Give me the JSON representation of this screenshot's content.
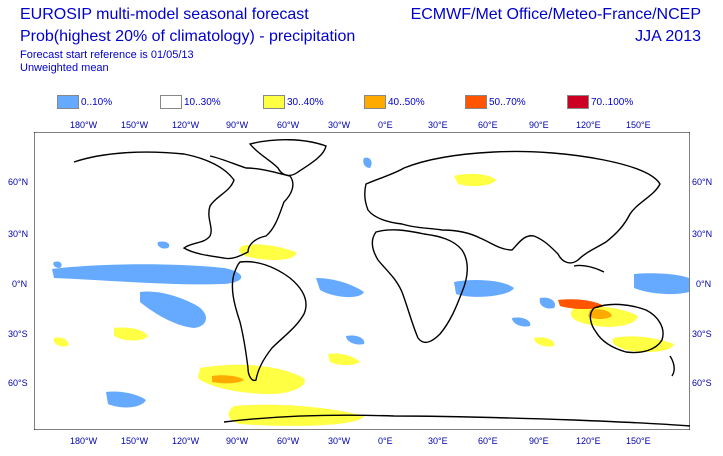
{
  "header": {
    "title_line1": "EUROSIP multi-model seasonal forecast",
    "title_line2": "Prob(highest 20% of climatology) - precipitation",
    "subtitle_line1": "Forecast start reference is 01/05/13",
    "subtitle_line2": "Unweighted mean",
    "organizations": "ECMWF/Met Office/Meteo-France/NCEP",
    "season": "JJA 2013"
  },
  "legend": [
    {
      "label": "0..10%",
      "color": "#66aaff"
    },
    {
      "label": "10..30%",
      "color": "#ffffff"
    },
    {
      "label": "30..40%",
      "color": "#ffff44"
    },
    {
      "label": "40..50%",
      "color": "#ffaa00"
    },
    {
      "label": "50..70%",
      "color": "#ff5500"
    },
    {
      "label": "70..100%",
      "color": "#cc0022"
    }
  ],
  "lon_labels": [
    "180°W",
    "150°W",
    "120°W",
    "90°W",
    "60°W",
    "30°W",
    "0°E",
    "30°E",
    "60°E",
    "90°E",
    "120°E",
    "150°E"
  ],
  "lat_labels": [
    "60°N",
    "30°N",
    "0°N",
    "30°S",
    "60°S"
  ]
}
